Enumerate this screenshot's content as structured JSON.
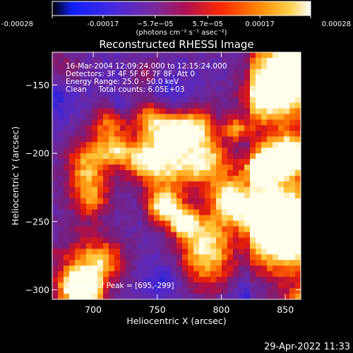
{
  "colorbar": {
    "tick_labels": [
      "-0.00028",
      "-0.00017",
      "−5.7e−05",
      "5.7e−05",
      "0.00017",
      "0.00028"
    ],
    "tick_values": [
      -0.00028,
      -0.00017,
      -5.7e-05,
      5.7e-05,
      0.00017,
      0.00028
    ],
    "range": [
      -0.00028,
      0.00028
    ],
    "units_label": "(photons cm⁻² s⁻¹ asec⁻²)"
  },
  "plot": {
    "title": "Reconstructed RHESSI Image",
    "xlabel": "Heliocentric X (arcsec)",
    "ylabel": "Heliocentric Y (arcsec)",
    "annotations": [
      "16-Mar-2004 12:09:24.000 to 12:15:24.000",
      "Detectors: 3F 4F 5F 6F 7F 8F, Att 0",
      "Energy Range: 25.0 - 50.0 keV",
      "Clean     Total counts: 6.05E+03"
    ],
    "peak_label": "Position of Peak = [695,-299]"
  },
  "chart_data": {
    "type": "heatmap",
    "title": "Reconstructed RHESSI Image",
    "xlabel": "Heliocentric X (arcsec)",
    "ylabel": "Heliocentric Y (arcsec)",
    "xlim": [
      668,
      862
    ],
    "ylim": [
      -307,
      -126
    ],
    "x_ticks": [
      700,
      750,
      800,
      850
    ],
    "y_ticks": [
      -150,
      -200,
      -250,
      -300
    ],
    "colorscale": [
      "#000000",
      "#1a1aff",
      "#6a2aa0",
      "#b01050",
      "#ff2a00",
      "#ff8800",
      "#ffd24a",
      "#ffffff"
    ],
    "peak": [
      695,
      -299
    ]
  },
  "footer": {
    "timestamp": "29-Apr-2022 11:33"
  }
}
